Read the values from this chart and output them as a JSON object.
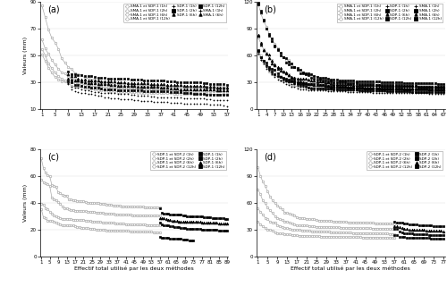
{
  "panels": {
    "a": {
      "label": "(a)",
      "xmax": 57,
      "ymin": 10,
      "ymax": 90,
      "yticks": [
        10,
        30,
        50,
        70,
        90
      ],
      "xticks": [
        1,
        5,
        9,
        13,
        17,
        21,
        25,
        29,
        33,
        37,
        41,
        45,
        49,
        53,
        57
      ],
      "ylabel": "Valeurs (mm)",
      "shared_prefix": "SMA-1 et SDP-1",
      "extra1_name": "SDP-1",
      "extra2_name": "SMA-1",
      "has_extra2": true,
      "extra2_durations": [
        "(1h)",
        "(6h)"
      ],
      "shared_curves": [
        {
          "dur": "(1h)",
          "n": 57,
          "y0": 51,
          "yend": 22,
          "shape": 3.0
        },
        {
          "dur": "(2h)",
          "n": 57,
          "y0": 55,
          "yend": 24,
          "shape": 2.8
        },
        {
          "dur": "(6h)",
          "n": 57,
          "y0": 62,
          "yend": 26,
          "shape": 2.6
        },
        {
          "dur": "(12h)",
          "n": 57,
          "y0": 87,
          "yend": 27,
          "shape": 2.4
        }
      ],
      "extra1_curves": [
        {
          "dur": "(1h)",
          "x0": 9,
          "xend": 57,
          "y0": 25,
          "yend": 13,
          "shape": 0.8
        },
        {
          "dur": "(2h)",
          "x0": 9,
          "xend": 57,
          "y0": 29,
          "yend": 20,
          "shape": 0.6
        },
        {
          "dur": "(6h)",
          "x0": 9,
          "xend": 57,
          "y0": 33,
          "yend": 26,
          "shape": 0.5
        },
        {
          "dur": "(12h)",
          "x0": 9,
          "xend": 57,
          "y0": 36,
          "yend": 28,
          "shape": 0.5
        }
      ],
      "extra2_curves": [
        {
          "dur": "(1h)",
          "x0": 9,
          "xend": 57,
          "y0": 26,
          "yend": 17,
          "shape": 0.7
        },
        {
          "dur": "(6h)",
          "x0": 9,
          "xend": 57,
          "y0": 30,
          "yend": 24,
          "shape": 0.5
        }
      ]
    },
    "b": {
      "label": "(b)",
      "xmax": 67,
      "ymin": 0,
      "ymax": 120,
      "yticks": [
        0,
        30,
        60,
        90,
        120
      ],
      "xticks": [
        1,
        4,
        7,
        10,
        13,
        16,
        19,
        22,
        25,
        28,
        31,
        34,
        37,
        40,
        43,
        46,
        49,
        52,
        55,
        58,
        61,
        64,
        67
      ],
      "ylabel": "",
      "shared_prefix": "SMA-1 et SDP-1",
      "extra1_name": "SDP-1",
      "extra2_name": "SMA-1",
      "has_extra2": true,
      "extra2_durations": [
        "(1h)",
        "(2h)",
        "(6h)",
        "(12h)"
      ],
      "shared_curves": [
        {
          "dur": "(1h)",
          "n": 67,
          "y0": 62,
          "yend": 20,
          "shape": 2.5
        },
        {
          "dur": "(2h)",
          "n": 67,
          "y0": 65,
          "yend": 22,
          "shape": 2.3
        },
        {
          "dur": "(6h)",
          "n": 67,
          "y0": 80,
          "yend": 25,
          "shape": 2.2
        },
        {
          "dur": "(12h)",
          "n": 67,
          "y0": 118,
          "yend": 28,
          "shape": 2.0
        }
      ],
      "extra1_curves": [
        {
          "dur": "(1h)",
          "x0": 1,
          "xend": 67,
          "y0": 62,
          "yend": 20,
          "shape": 2.5
        },
        {
          "dur": "(2h)",
          "x0": 1,
          "xend": 67,
          "y0": 65,
          "yend": 23,
          "shape": 2.3
        },
        {
          "dur": "(6h)",
          "x0": 1,
          "xend": 67,
          "y0": 80,
          "yend": 26,
          "shape": 2.2
        },
        {
          "dur": "(12h)",
          "x0": 1,
          "xend": 67,
          "y0": 118,
          "yend": 29,
          "shape": 2.0
        }
      ],
      "extra2_curves": [
        {
          "dur": "(1h)",
          "x0": 1,
          "xend": 67,
          "y0": 62,
          "yend": 18,
          "shape": 2.5
        },
        {
          "dur": "(2h)",
          "x0": 1,
          "xend": 67,
          "y0": 65,
          "yend": 20,
          "shape": 2.3
        },
        {
          "dur": "(6h)",
          "x0": 1,
          "xend": 67,
          "y0": 80,
          "yend": 23,
          "shape": 2.2
        },
        {
          "dur": "(12h)",
          "x0": 1,
          "xend": 67,
          "y0": 118,
          "yend": 26,
          "shape": 2.0
        }
      ]
    },
    "c": {
      "label": "(c)",
      "xmax": 89,
      "ymin": 0,
      "ymax": 80,
      "yticks": [
        0,
        20,
        40,
        60,
        80
      ],
      "xticks": [
        1,
        5,
        9,
        13,
        17,
        21,
        25,
        29,
        33,
        37,
        41,
        45,
        49,
        53,
        57,
        61,
        65,
        69,
        73,
        77,
        81,
        85,
        89
      ],
      "ylabel": "Valeurs (mm)",
      "xlabel": "Effectif total utilisé par les deux méthodes",
      "shared_prefix": "SDP-1 et SDP-2",
      "extra1_name": "SDP-1",
      "extra2_name": "",
      "has_extra2": false,
      "extra2_durations": [],
      "shared_curves": [
        {
          "dur": "(1h)",
          "n": 57,
          "y0": 33,
          "yend": 20,
          "shape": 2.5
        },
        {
          "dur": "(2h)",
          "n": 57,
          "y0": 41,
          "yend": 25,
          "shape": 2.3
        },
        {
          "dur": "(6h)",
          "n": 57,
          "y0": 59,
          "yend": 32,
          "shape": 2.2
        },
        {
          "dur": "(12h)",
          "n": 57,
          "y0": 72,
          "yend": 38,
          "shape": 2.0
        }
      ],
      "extra1_curves": [
        {
          "dur": "(1h)",
          "x0": 57,
          "xend": 73,
          "y0": 14,
          "yend": 12,
          "shape": 0.3
        },
        {
          "dur": "(2h)",
          "x0": 57,
          "xend": 89,
          "y0": 22,
          "yend": 20,
          "shape": 0.3
        },
        {
          "dur": "(6h)",
          "x0": 57,
          "xend": 89,
          "y0": 27,
          "yend": 25,
          "shape": 0.3
        },
        {
          "dur": "(12h)",
          "x0": 57,
          "xend": 89,
          "y0": 32,
          "yend": 28,
          "shape": 0.3
        }
      ],
      "extra2_curves": []
    },
    "d": {
      "label": "(d)",
      "xmax": 77,
      "ymin": 0,
      "ymax": 120,
      "yticks": [
        0,
        30,
        60,
        90,
        120
      ],
      "xticks": [
        1,
        5,
        9,
        13,
        17,
        21,
        25,
        29,
        33,
        37,
        41,
        45,
        49,
        53,
        57,
        61,
        65,
        69,
        73,
        77
      ],
      "ylabel": "",
      "xlabel": "Effectif total utilisé par les deux méthodes",
      "shared_prefix": "SDP-1 et SDP-2",
      "extra1_name": "SDP-2",
      "extra2_name": "",
      "has_extra2": false,
      "extra2_durations": [],
      "shared_curves": [
        {
          "dur": "(1h)",
          "n": 57,
          "y0": 40,
          "yend": 22,
          "shape": 2.5
        },
        {
          "dur": "(2h)",
          "n": 57,
          "y0": 55,
          "yend": 27,
          "shape": 2.3
        },
        {
          "dur": "(6h)",
          "n": 57,
          "y0": 75,
          "yend": 32,
          "shape": 2.2
        },
        {
          "dur": "(12h)",
          "n": 57,
          "y0": 100,
          "yend": 38,
          "shape": 2.0
        }
      ],
      "extra1_curves": [
        {
          "dur": "(1h)",
          "x0": 57,
          "xend": 77,
          "y0": 22,
          "yend": 20,
          "shape": 0.3
        },
        {
          "dur": "(2h)",
          "x0": 57,
          "xend": 77,
          "y0": 27,
          "yend": 24,
          "shape": 0.3
        },
        {
          "dur": "(6h)",
          "x0": 57,
          "xend": 77,
          "y0": 32,
          "yend": 28,
          "shape": 0.3
        },
        {
          "dur": "(12h)",
          "x0": 57,
          "xend": 77,
          "y0": 38,
          "yend": 33,
          "shape": 0.3
        }
      ],
      "extra2_curves": []
    }
  },
  "gray_color": "#aaaaaa",
  "black_color": "#000000",
  "shared_markers": [
    "o",
    "o",
    "o",
    "o"
  ],
  "extra1_markers_ab": [
    "+",
    "s",
    "^",
    "s"
  ],
  "extra2_markers_ab": [
    "+",
    "s",
    "^",
    "s"
  ],
  "extra1_markers_cd": [
    "s",
    "s",
    "^",
    "s"
  ]
}
